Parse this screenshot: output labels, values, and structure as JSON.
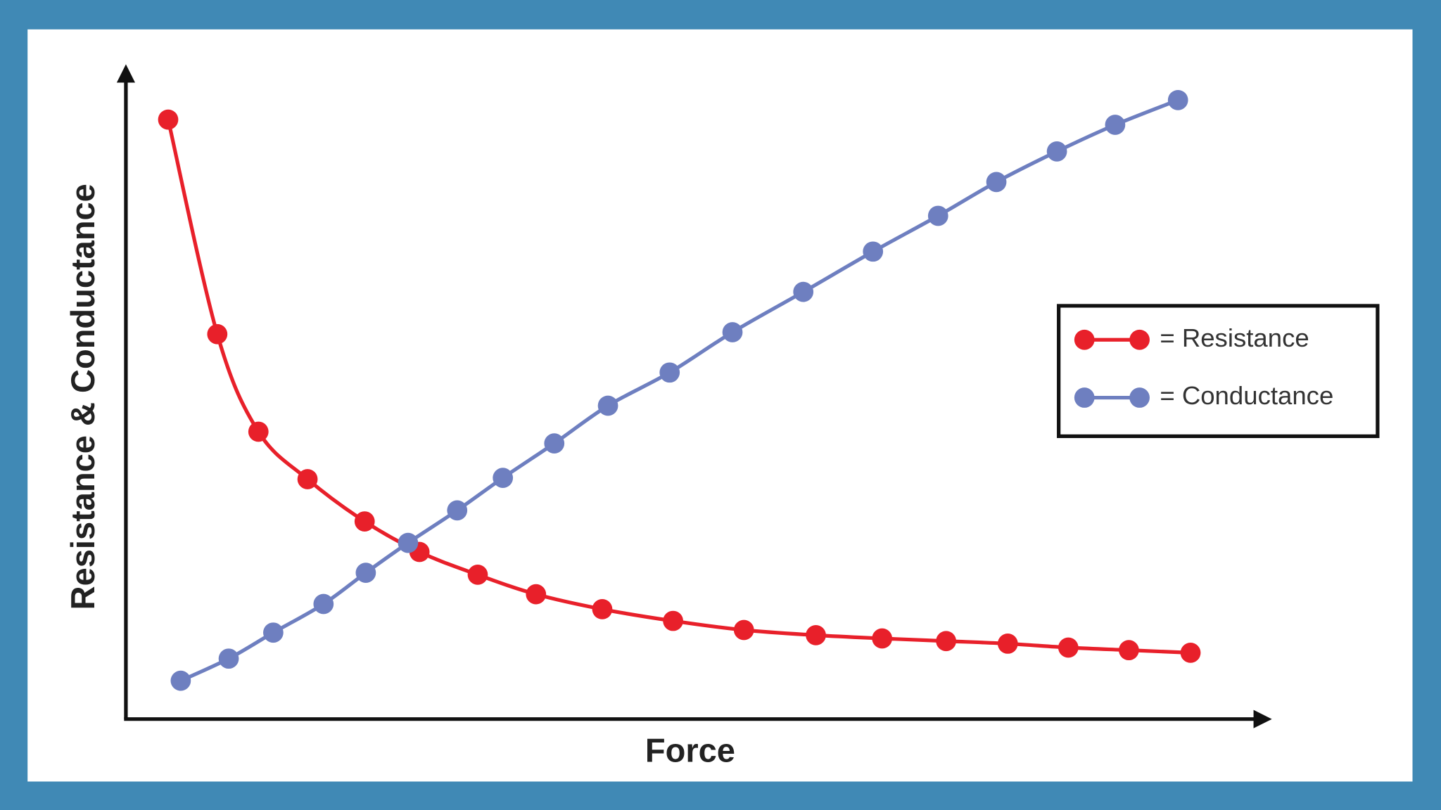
{
  "chart_data": {
    "type": "line",
    "x_label": "Force",
    "y_label": "Resistance & Conductance",
    "xlim": [
      0,
      100
    ],
    "ylim": [
      0,
      100
    ],
    "grid": false,
    "legend": "right",
    "series": [
      {
        "name": "= Resistance",
        "color": "#e8202a",
        "x": [
          3.7,
          8.0,
          11.6,
          15.9,
          20.9,
          25.7,
          30.8,
          35.9,
          41.7,
          47.9,
          54.1,
          60.4,
          66.2,
          71.8,
          77.2,
          82.5,
          87.8,
          93.2
        ],
        "values": [
          92.2,
          59.2,
          44.2,
          36.9,
          30.4,
          25.7,
          22.2,
          19.2,
          16.9,
          15.1,
          13.7,
          12.9,
          12.4,
          12.0,
          11.6,
          11.0,
          10.6,
          10.2
        ]
      },
      {
        "name": "= Conductance",
        "color": "#6e7fc0",
        "x": [
          4.8,
          9.0,
          12.9,
          17.3,
          21.0,
          24.7,
          29.0,
          33.0,
          37.5,
          42.2,
          47.6,
          53.1,
          59.3,
          65.4,
          71.1,
          76.2,
          81.5,
          86.6,
          92.1
        ],
        "values": [
          5.9,
          9.3,
          13.3,
          17.7,
          22.5,
          27.1,
          32.1,
          37.1,
          42.4,
          48.2,
          53.3,
          59.5,
          65.7,
          71.9,
          77.4,
          82.6,
          87.3,
          91.4,
          95.2
        ]
      }
    ]
  }
}
